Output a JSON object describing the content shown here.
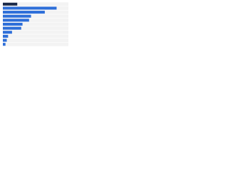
{
  "chart_data": {
    "type": "hbar",
    "values": [
      22,
      82,
      64,
      43,
      40,
      30,
      28,
      14,
      8,
      6,
      4
    ],
    "colors": [
      "#1c2b4a",
      "#2e6fd9",
      "#2e6fd9",
      "#2e6fd9",
      "#2e6fd9",
      "#2e6fd9",
      "#2e6fd9",
      "#2e6fd9",
      "#2e6fd9",
      "#2e6fd9",
      "#2e6fd9"
    ],
    "xlim": [
      0,
      100
    ],
    "grid": true
  }
}
